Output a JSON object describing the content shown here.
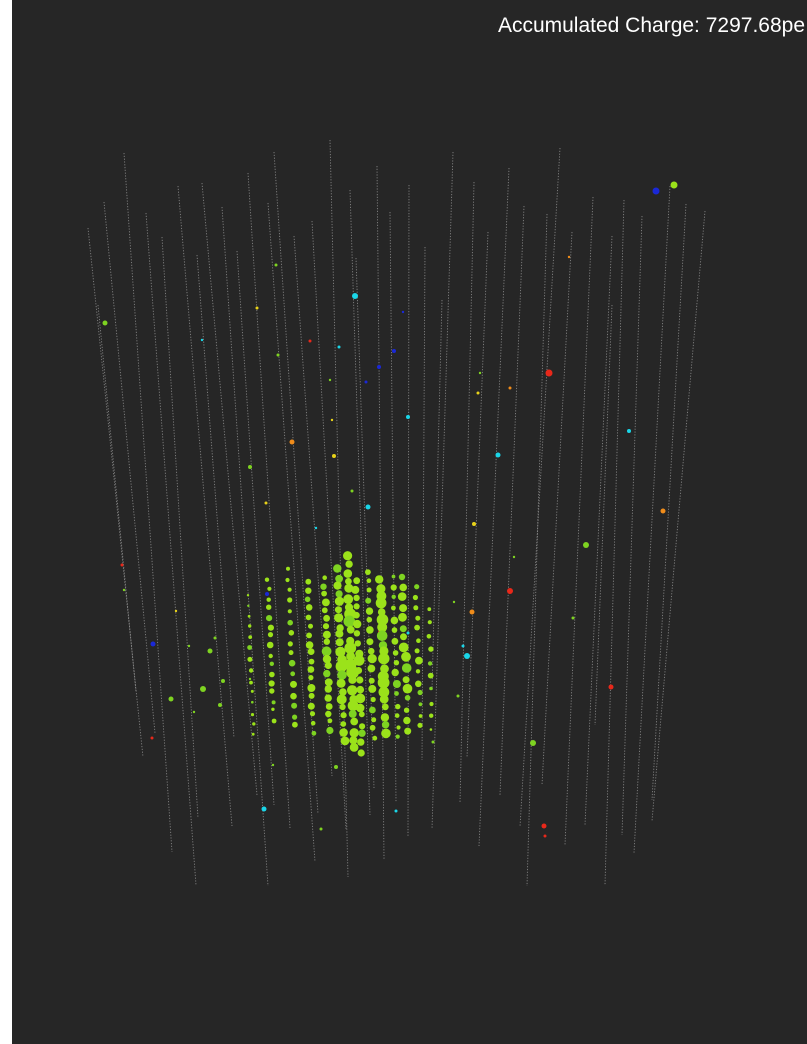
{
  "overlay": {
    "accumulated_charge_label": "Accumulated Charge: 7297.68pe"
  },
  "colors": {
    "background": "#262626",
    "string_line": "#9a9a9a",
    "hit_green": "#9be21a",
    "hit_lime": "#7ed321",
    "hit_yellow": "#e8d21a",
    "hit_orange": "#f08c1a",
    "hit_red": "#e8281a",
    "hit_cyan": "#1ad6e8",
    "hit_blue": "#1a28d6"
  }
}
